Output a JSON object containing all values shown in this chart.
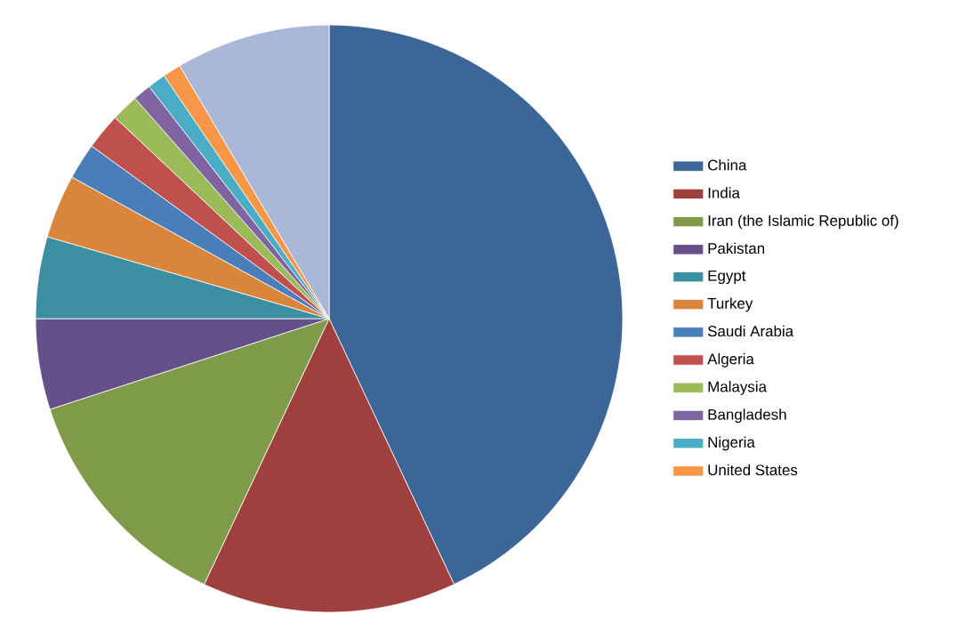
{
  "chart_data": {
    "type": "pie",
    "categories": [
      "China",
      "India",
      "Iran (the Islamic Republic of)",
      "Pakistan",
      "Egypt",
      "Turkey",
      "Saudi Arabia",
      "Algeria",
      "Malaysia",
      "Bangladesh",
      "Nigeria",
      "United States",
      null
    ],
    "values": [
      43,
      14,
      13,
      5,
      4.5,
      3.5,
      2,
      2,
      1.5,
      1,
      1,
      1,
      8.5
    ],
    "colors": [
      "#3d6698",
      "#a0403e",
      "#7f9a48",
      "#66508a",
      "#3c8ea3",
      "#d9853b",
      "#4a7ebb",
      "#c0504d",
      "#9bbb59",
      "#8064a2",
      "#4bacc6",
      "#f79646",
      "#a9b8d8"
    ],
    "legend": "right"
  }
}
